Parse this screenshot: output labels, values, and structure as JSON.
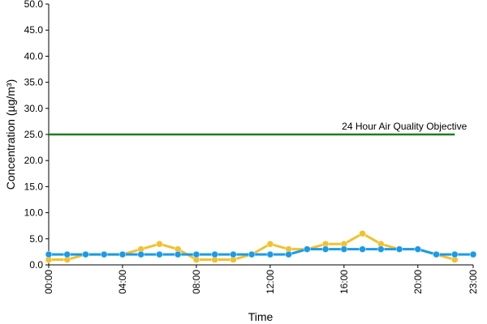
{
  "chart_data": {
    "type": "line",
    "y_label": "Concentration (µg/m³)",
    "x_label": "Time",
    "x": [
      0,
      1,
      2,
      3,
      4,
      5,
      6,
      7,
      8,
      9,
      10,
      11,
      12,
      13,
      14,
      15,
      16,
      17,
      18,
      19,
      20,
      21,
      22,
      23
    ],
    "series": [
      {
        "color": "#f2c12e",
        "values": [
          1,
          1,
          2,
          2,
          2,
          3,
          4,
          3,
          1,
          1,
          1,
          2,
          4,
          3,
          3,
          4,
          4,
          6,
          4,
          3,
          3,
          2,
          1,
          null
        ]
      },
      {
        "color": "#1a9be8",
        "values": [
          2,
          2,
          2,
          2,
          2,
          2,
          2,
          2,
          2,
          2,
          2,
          2,
          2,
          2,
          3,
          3,
          3,
          3,
          3,
          3,
          3,
          2,
          2,
          2
        ]
      }
    ],
    "objective": {
      "label": "24 Hour Air Quality Objective",
      "x": [
        0,
        22
      ],
      "values": [
        25,
        25
      ],
      "color": "#1e7d1e"
    },
    "xlim": [
      0,
      23
    ],
    "xticks": [
      {
        "value": 0,
        "label": "00:00"
      },
      {
        "value": 4,
        "label": "04:00"
      },
      {
        "value": 8,
        "label": "08:00"
      },
      {
        "value": 12,
        "label": "12:00"
      },
      {
        "value": 16,
        "label": "16:00"
      },
      {
        "value": 20,
        "label": "20:00"
      },
      {
        "value": 23,
        "label": "23:00"
      }
    ],
    "ylim": [
      0,
      50
    ],
    "yticks": [
      {
        "value": 0,
        "label": "0.0"
      },
      {
        "value": 5,
        "label": "5.0"
      },
      {
        "value": 10,
        "label": "10.0"
      },
      {
        "value": 15,
        "label": "15.0"
      },
      {
        "value": 20,
        "label": "20.0"
      },
      {
        "value": 25,
        "label": "25.0"
      },
      {
        "value": 30,
        "label": "30.0"
      },
      {
        "value": 35,
        "label": "35.0"
      },
      {
        "value": 40,
        "label": "40.0"
      },
      {
        "value": 45,
        "label": "45.0"
      },
      {
        "value": 50,
        "label": "50.0"
      }
    ]
  }
}
